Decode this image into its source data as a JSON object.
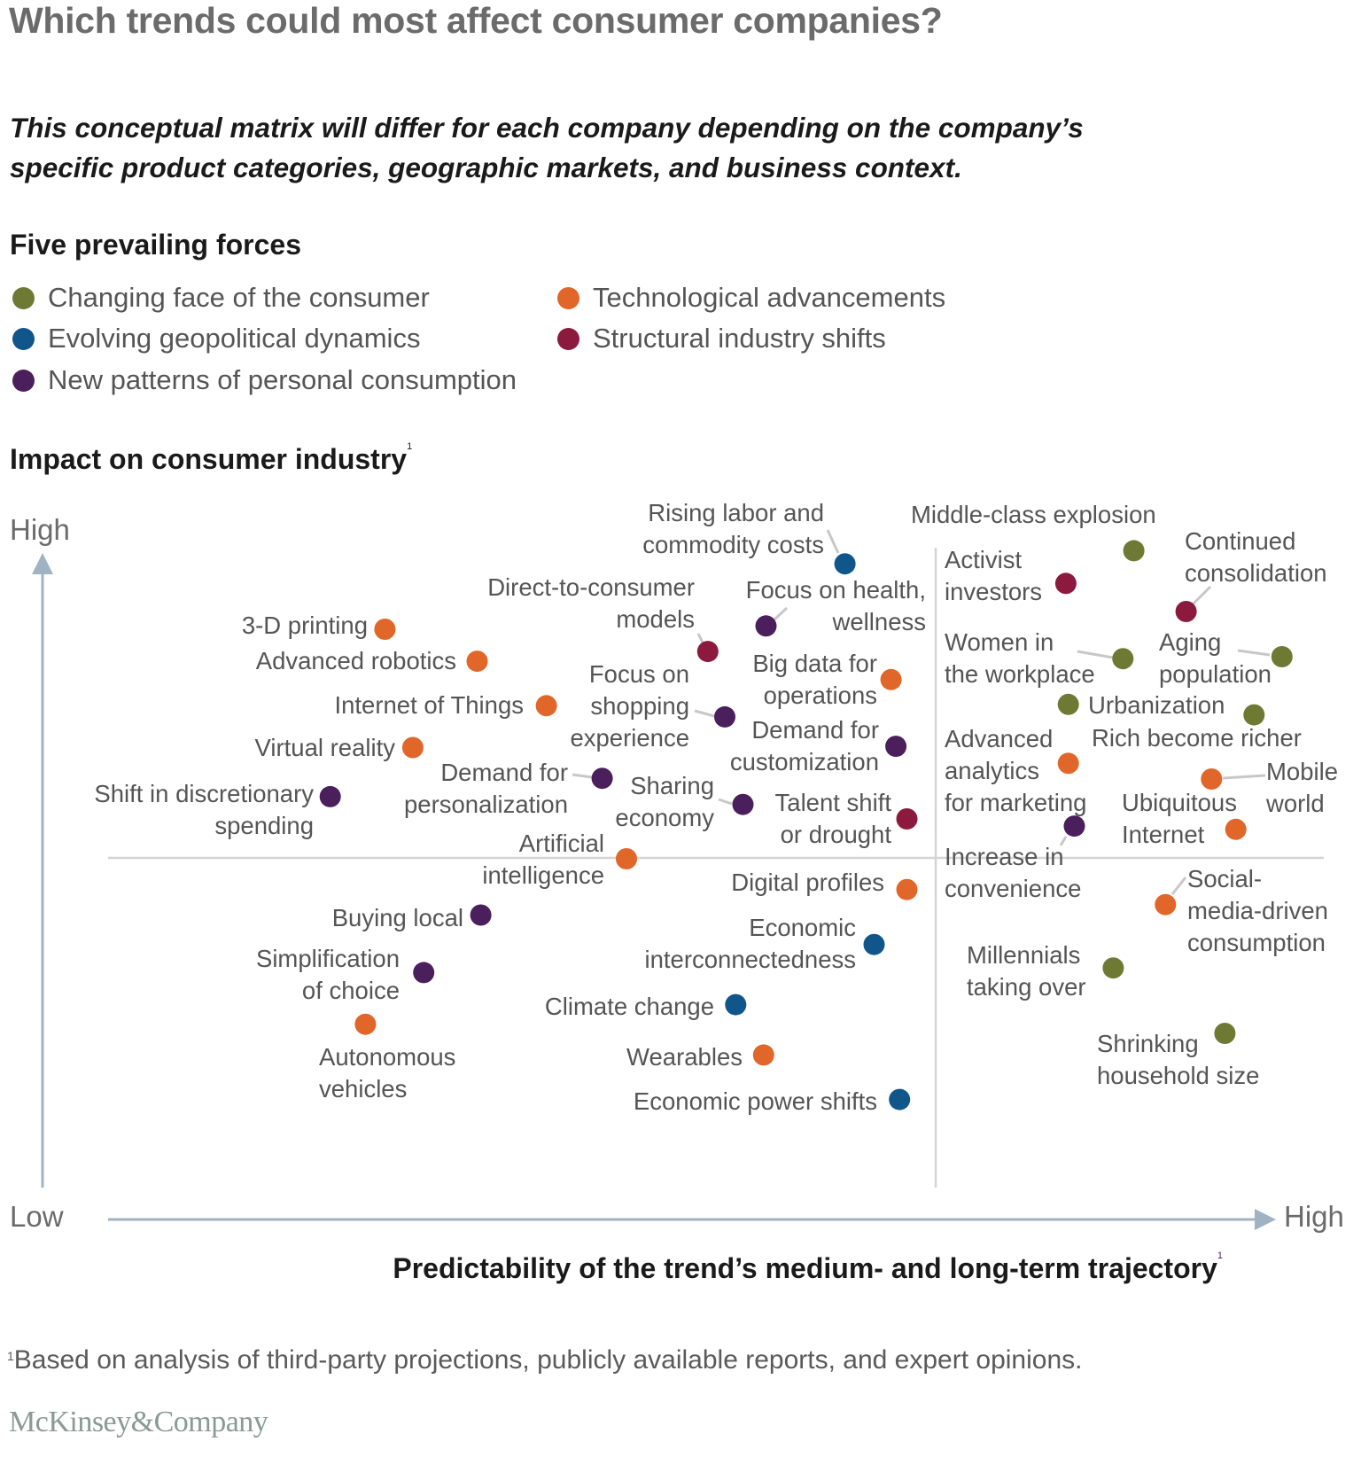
{
  "title": "Which trends could most affect consumer companies?",
  "subtitle_lines": [
    "This conceptual matrix will differ for each company depending on the company’s",
    "specific product categories, geographic markets, and business context."
  ],
  "legend": {
    "heading": "Five prevailing forces",
    "items": [
      {
        "key": "consumer",
        "label": "Changing face of the consumer",
        "color": "#6e7a34"
      },
      {
        "key": "geopolitical",
        "label": "Evolving geopolitical dynamics",
        "color": "#11568b"
      },
      {
        "key": "personal",
        "label": "New patterns of personal consumption",
        "color": "#4a1f5c"
      },
      {
        "key": "tech",
        "label": "Technological advancements",
        "color": "#e0662a"
      },
      {
        "key": "structural",
        "label": "Structural industry shifts",
        "color": "#8c1a3e"
      }
    ]
  },
  "footnote_marker": "1",
  "footnote": "Based on analysis of third-party projections, publicly available reports, and expert opinions.",
  "brand": "McKinsey&Company",
  "chart_data": {
    "type": "scatter",
    "title": "Which trends could most affect consumer companies?",
    "ylabel": "Impact on consumer industry",
    "ylabel_footnote": "1",
    "xlabel": "Predictability of the trend’s medium- and long-term trajectory",
    "xlabel_footnote": "1",
    "y_axis_ends": {
      "low": "Low",
      "high": "High"
    },
    "x_axis_ends": {
      "low": "Low",
      "high": "High"
    },
    "xlim": [
      0,
      100
    ],
    "ylim": [
      0,
      100
    ],
    "quadrant_dividers": {
      "x": 68.3,
      "y": 50.0
    },
    "grid": false,
    "legend_position": "top-left",
    "points": [
      {
        "label": [
          "Rising labor and",
          "commodity costs"
        ],
        "category": "geopolitical",
        "x": 60.7,
        "y": 95.1
      },
      {
        "label": [
          "Middle-class explosion"
        ],
        "category": "consumer",
        "x": 84.5,
        "y": 97.1
      },
      {
        "label": [
          "Activist",
          "investors"
        ],
        "category": "structural",
        "x": 78.9,
        "y": 92.1
      },
      {
        "label": [
          "Continued",
          "consolidation"
        ],
        "category": "structural",
        "x": 88.8,
        "y": 87.8
      },
      {
        "label": [
          "3-D printing"
        ],
        "category": "tech",
        "x": 22.8,
        "y": 85.1
      },
      {
        "label": [
          "Focus on health,",
          "wellness"
        ],
        "category": "personal",
        "x": 54.2,
        "y": 85.6
      },
      {
        "label": [
          "Direct-to-consumer",
          "models"
        ],
        "category": "structural",
        "x": 49.4,
        "y": 81.7
      },
      {
        "label": [
          "Advanced robotics"
        ],
        "category": "tech",
        "x": 30.4,
        "y": 80.2
      },
      {
        "label": [
          "Women in",
          "the workplace"
        ],
        "category": "consumer",
        "x": 83.6,
        "y": 80.6
      },
      {
        "label": [
          "Aging",
          "population"
        ],
        "category": "consumer",
        "x": 96.7,
        "y": 80.9
      },
      {
        "label": [
          "Big data for",
          "operations"
        ],
        "category": "tech",
        "x": 64.5,
        "y": 77.4
      },
      {
        "label": [
          "Internet of Things"
        ],
        "category": "tech",
        "x": 36.1,
        "y": 73.4
      },
      {
        "label": [
          "Urbanization"
        ],
        "category": "consumer",
        "x": 79.1,
        "y": 73.6
      },
      {
        "label": [
          "Focus on",
          "shopping",
          "experience"
        ],
        "category": "personal",
        "x": 50.8,
        "y": 71.7
      },
      {
        "label": [
          "Rich become richer"
        ],
        "category": "consumer",
        "x": 94.4,
        "y": 72.0
      },
      {
        "label": [
          "Virtual reality"
        ],
        "category": "tech",
        "x": 25.1,
        "y": 67.0
      },
      {
        "label": [
          "Demand for",
          "customization"
        ],
        "category": "personal",
        "x": 64.9,
        "y": 67.2
      },
      {
        "label": [
          "Advanced",
          "analytics",
          "for marketing"
        ],
        "category": "tech",
        "x": 79.1,
        "y": 64.6
      },
      {
        "label": [
          "Mobile",
          "world"
        ],
        "category": "tech",
        "x": 90.9,
        "y": 62.2
      },
      {
        "label": [
          "Demand for",
          "personalization"
        ],
        "category": "personal",
        "x": 40.7,
        "y": 62.3
      },
      {
        "label": [
          "Shift in discretionary",
          "spending"
        ],
        "category": "personal",
        "x": 18.3,
        "y": 59.5
      },
      {
        "label": [
          "Sharing",
          "economy"
        ],
        "category": "personal",
        "x": 52.3,
        "y": 58.3
      },
      {
        "label": [
          "Talent shift",
          "or drought"
        ],
        "category": "structural",
        "x": 65.8,
        "y": 56.1
      },
      {
        "label": [
          "Increase in",
          "convenience"
        ],
        "category": "personal",
        "x": 79.6,
        "y": 55.0
      },
      {
        "label": [
          "Ubiquitous",
          "Internet"
        ],
        "category": "tech",
        "x": 92.9,
        "y": 54.5
      },
      {
        "label": [
          "Artificial",
          "intelligence"
        ],
        "category": "tech",
        "x": 42.7,
        "y": 50.0
      },
      {
        "label": [
          "Digital profiles"
        ],
        "category": "tech",
        "x": 65.8,
        "y": 45.3
      },
      {
        "label": [
          "Social-",
          "media-driven",
          "consumption"
        ],
        "category": "tech",
        "x": 87.1,
        "y": 43.0
      },
      {
        "label": [
          "Buying local"
        ],
        "category": "personal",
        "x": 30.7,
        "y": 41.4
      },
      {
        "label": [
          "Economic",
          "interconnectedness"
        ],
        "category": "geopolitical",
        "x": 63.1,
        "y": 36.9
      },
      {
        "label": [
          "Millennials",
          "taking over"
        ],
        "category": "consumer",
        "x": 82.8,
        "y": 33.3
      },
      {
        "label": [
          "Simplification",
          "of choice"
        ],
        "category": "personal",
        "x": 26.0,
        "y": 32.6
      },
      {
        "label": [
          "Climate change"
        ],
        "category": "geopolitical",
        "x": 51.7,
        "y": 27.7
      },
      {
        "label": [
          "Autonomous",
          "vehicles"
        ],
        "category": "tech",
        "x": 21.2,
        "y": 24.7
      },
      {
        "label": [
          "Shrinking",
          "household size"
        ],
        "category": "consumer",
        "x": 92.0,
        "y": 23.3
      },
      {
        "label": [
          "Wearables"
        ],
        "category": "tech",
        "x": 54.0,
        "y": 20.0
      },
      {
        "label": [
          "Economic power shifts"
        ],
        "category": "geopolitical",
        "x": 65.2,
        "y": 13.2
      }
    ]
  }
}
